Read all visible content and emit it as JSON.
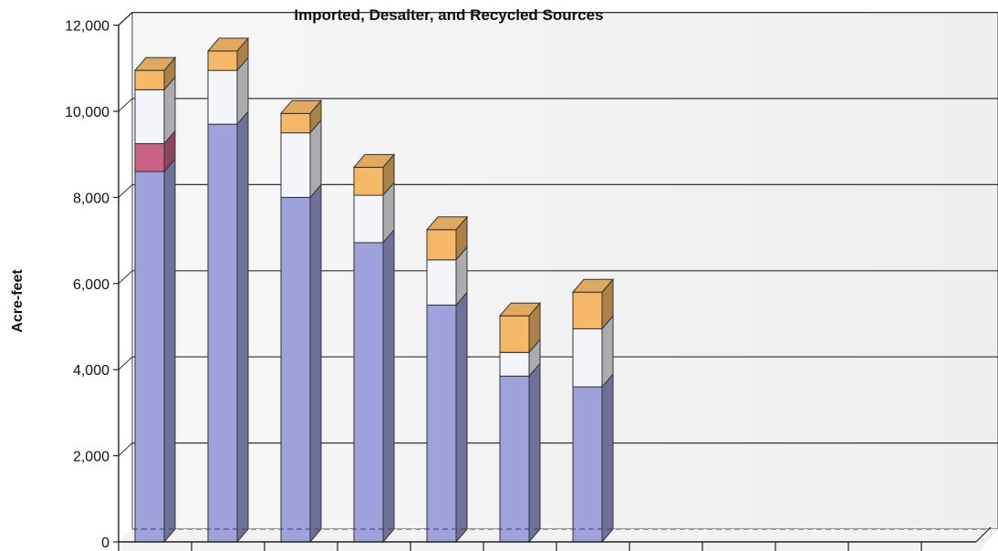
{
  "chart_data": {
    "type": "bar",
    "stacked": true,
    "three_d": true,
    "title": "Imported, Desalter, and Recycled Sources",
    "ylabel": "Acre-feet",
    "ylim": [
      0,
      12000
    ],
    "yticks": [
      0,
      2000,
      4000,
      6000,
      8000,
      10000,
      12000
    ],
    "ytick_labels": [
      "0",
      "2,000",
      "4,000",
      "6,000",
      "8,000",
      "10,000",
      "12,000"
    ],
    "grid": true,
    "category_slots": 12,
    "series": [
      {
        "color": "#9ea1db",
        "values": [
          8600,
          9700,
          8000,
          6950,
          5500,
          3850,
          3600
        ]
      },
      {
        "color": "#c96185",
        "values": [
          650,
          0,
          0,
          0,
          0,
          0,
          0
        ]
      },
      {
        "color": "#f3f5fb",
        "values": [
          1250,
          1250,
          1500,
          1100,
          1050,
          550,
          1350
        ]
      },
      {
        "color": "#f4b867",
        "values": [
          450,
          450,
          450,
          650,
          700,
          850,
          850
        ]
      }
    ]
  }
}
